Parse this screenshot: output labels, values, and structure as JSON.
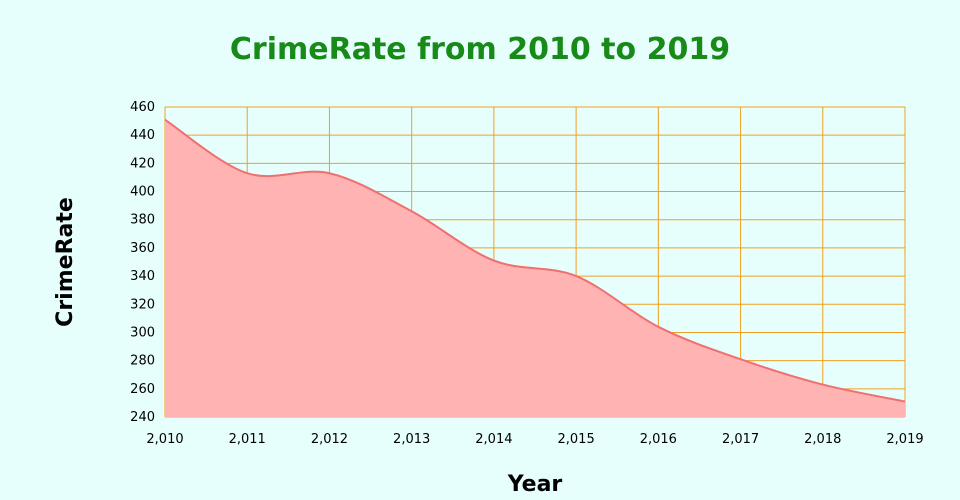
{
  "colors": {
    "background": "#e6fffd",
    "title": "#178a17",
    "grid": "#f0a020",
    "area_fill": "#ffb3b3",
    "line": "#f07070"
  },
  "chart_data": {
    "type": "area",
    "title": "CrimeRate from 2010 to 2019",
    "xlabel": "Year",
    "ylabel": "CrimeRate",
    "x": [
      2010,
      2011,
      2012,
      2013,
      2014,
      2015,
      2016,
      2017,
      2018,
      2019
    ],
    "x_tick_labels": [
      "2,010",
      "2,011",
      "2,012",
      "2,013",
      "2,014",
      "2,015",
      "2,016",
      "2,017",
      "2,018",
      "2,019"
    ],
    "series": [
      {
        "values": [
          451,
          413,
          413,
          386,
          351,
          340,
          304,
          281,
          263,
          251
        ]
      }
    ],
    "ylim": [
      240,
      460
    ],
    "y_ticks": [
      240,
      260,
      280,
      300,
      320,
      340,
      360,
      380,
      400,
      420,
      440,
      460
    ],
    "grid": true,
    "smooth": true
  }
}
